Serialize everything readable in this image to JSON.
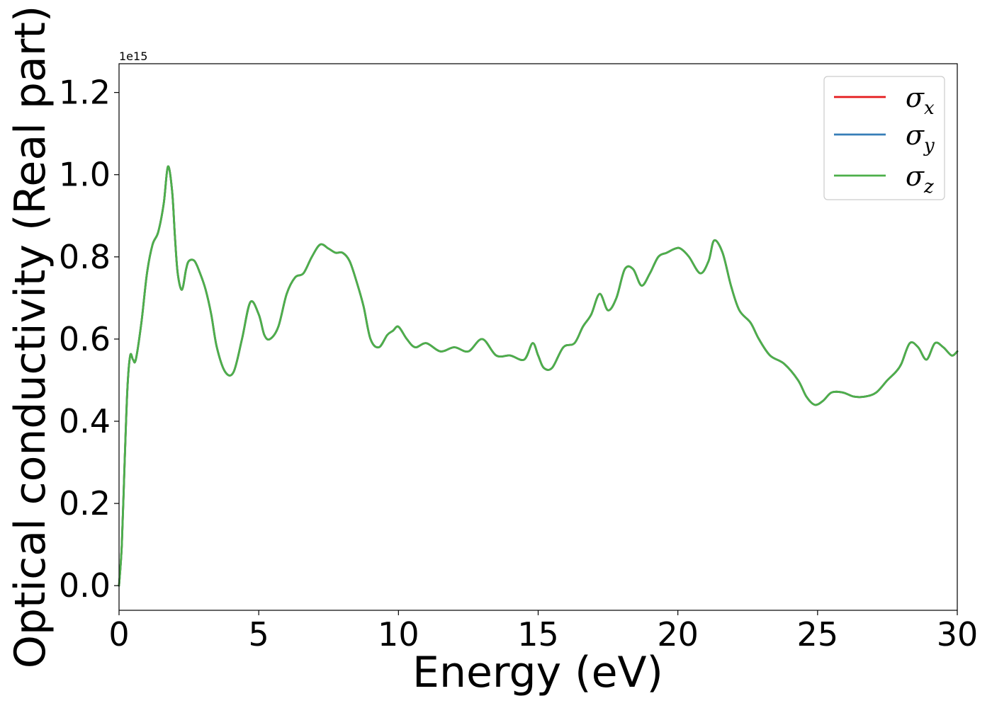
{
  "chart_data": {
    "type": "line",
    "title": "",
    "xlabel": "Energy (eV)",
    "ylabel": "Optical conductivity (Real part)",
    "y_offset_text": "1e15",
    "xlim": [
      0,
      30
    ],
    "ylim": [
      -0.06,
      1.27
    ],
    "xticks": [
      0,
      5,
      10,
      15,
      20,
      25,
      30
    ],
    "yticks": [
      0.0,
      0.2,
      0.4,
      0.6,
      0.8,
      1.0,
      1.2
    ],
    "xtick_labels": [
      "0",
      "5",
      "10",
      "15",
      "20",
      "25",
      "30"
    ],
    "ytick_labels": [
      "0.0",
      "0.2",
      "0.4",
      "0.6",
      "0.8",
      "1.0",
      "1.2"
    ],
    "grid": false,
    "legend_position": "top-right",
    "x": [
      0.0,
      0.1,
      0.2,
      0.3,
      0.4,
      0.5,
      0.6,
      0.8,
      1.0,
      1.2,
      1.4,
      1.6,
      1.75,
      1.9,
      2.0,
      2.1,
      2.25,
      2.4,
      2.5,
      2.7,
      2.9,
      3.1,
      3.3,
      3.5,
      3.8,
      4.1,
      4.4,
      4.7,
      5.0,
      5.2,
      5.4,
      5.7,
      6.0,
      6.3,
      6.6,
      6.9,
      7.2,
      7.5,
      7.75,
      8.0,
      8.25,
      8.5,
      8.75,
      9.0,
      9.3,
      9.6,
      9.8,
      10.0,
      10.3,
      10.6,
      11.0,
      11.5,
      12.0,
      12.5,
      13.0,
      13.5,
      14.0,
      14.5,
      14.8,
      15.0,
      15.2,
      15.5,
      15.9,
      16.3,
      16.6,
      16.9,
      17.2,
      17.5,
      17.8,
      18.1,
      18.4,
      18.7,
      19.0,
      19.3,
      19.6,
      19.9,
      20.1,
      20.4,
      20.8,
      21.1,
      21.3,
      21.6,
      21.9,
      22.2,
      22.6,
      22.9,
      23.3,
      23.8,
      24.3,
      24.6,
      24.9,
      25.2,
      25.5,
      25.9,
      26.3,
      26.7,
      27.1,
      27.5,
      27.8,
      28.0,
      28.3,
      28.6,
      28.9,
      29.2,
      29.5,
      29.8,
      30.0
    ],
    "series": [
      {
        "name": "σx",
        "color": "#e41a1c",
        "values": [
          0.0,
          0.1,
          0.3,
          0.48,
          0.56,
          0.55,
          0.55,
          0.64,
          0.76,
          0.83,
          0.86,
          0.93,
          1.02,
          0.96,
          0.85,
          0.76,
          0.72,
          0.77,
          0.79,
          0.79,
          0.76,
          0.72,
          0.66,
          0.58,
          0.52,
          0.52,
          0.6,
          0.69,
          0.66,
          0.61,
          0.6,
          0.63,
          0.71,
          0.75,
          0.76,
          0.8,
          0.83,
          0.82,
          0.81,
          0.81,
          0.79,
          0.74,
          0.68,
          0.6,
          0.58,
          0.61,
          0.62,
          0.63,
          0.6,
          0.58,
          0.59,
          0.57,
          0.58,
          0.57,
          0.6,
          0.56,
          0.56,
          0.55,
          0.59,
          0.56,
          0.53,
          0.53,
          0.58,
          0.59,
          0.63,
          0.66,
          0.71,
          0.67,
          0.7,
          0.77,
          0.77,
          0.73,
          0.76,
          0.8,
          0.81,
          0.82,
          0.82,
          0.8,
          0.76,
          0.79,
          0.84,
          0.81,
          0.73,
          0.67,
          0.64,
          0.6,
          0.56,
          0.54,
          0.5,
          0.46,
          0.44,
          0.45,
          0.47,
          0.47,
          0.46,
          0.46,
          0.47,
          0.5,
          0.52,
          0.54,
          0.59,
          0.58,
          0.55,
          0.59,
          0.58,
          0.56,
          0.57
        ]
      },
      {
        "name": "σy",
        "color": "#377eb8",
        "values": [
          0.0,
          0.1,
          0.3,
          0.48,
          0.56,
          0.55,
          0.55,
          0.64,
          0.76,
          0.83,
          0.86,
          0.93,
          1.02,
          0.96,
          0.85,
          0.76,
          0.72,
          0.77,
          0.79,
          0.79,
          0.76,
          0.72,
          0.66,
          0.58,
          0.52,
          0.52,
          0.6,
          0.69,
          0.66,
          0.61,
          0.6,
          0.63,
          0.71,
          0.75,
          0.76,
          0.8,
          0.83,
          0.82,
          0.81,
          0.81,
          0.79,
          0.74,
          0.68,
          0.6,
          0.58,
          0.61,
          0.62,
          0.63,
          0.6,
          0.58,
          0.59,
          0.57,
          0.58,
          0.57,
          0.6,
          0.56,
          0.56,
          0.55,
          0.59,
          0.56,
          0.53,
          0.53,
          0.58,
          0.59,
          0.63,
          0.66,
          0.71,
          0.67,
          0.7,
          0.77,
          0.77,
          0.73,
          0.76,
          0.8,
          0.81,
          0.82,
          0.82,
          0.8,
          0.76,
          0.79,
          0.84,
          0.81,
          0.73,
          0.67,
          0.64,
          0.6,
          0.56,
          0.54,
          0.5,
          0.46,
          0.44,
          0.45,
          0.47,
          0.47,
          0.46,
          0.46,
          0.47,
          0.5,
          0.52,
          0.54,
          0.59,
          0.58,
          0.55,
          0.59,
          0.58,
          0.56,
          0.57
        ]
      },
      {
        "name": "σz",
        "color": "#4daf4a",
        "values": [
          0.0,
          0.1,
          0.3,
          0.48,
          0.56,
          0.55,
          0.55,
          0.64,
          0.76,
          0.83,
          0.86,
          0.93,
          1.02,
          0.96,
          0.85,
          0.76,
          0.72,
          0.77,
          0.79,
          0.79,
          0.76,
          0.72,
          0.66,
          0.58,
          0.52,
          0.52,
          0.6,
          0.69,
          0.66,
          0.61,
          0.6,
          0.63,
          0.71,
          0.75,
          0.76,
          0.8,
          0.83,
          0.82,
          0.81,
          0.81,
          0.79,
          0.74,
          0.68,
          0.6,
          0.58,
          0.61,
          0.62,
          0.63,
          0.6,
          0.58,
          0.59,
          0.57,
          0.58,
          0.57,
          0.6,
          0.56,
          0.56,
          0.55,
          0.59,
          0.56,
          0.53,
          0.53,
          0.58,
          0.59,
          0.63,
          0.66,
          0.71,
          0.67,
          0.7,
          0.77,
          0.77,
          0.73,
          0.76,
          0.8,
          0.81,
          0.82,
          0.82,
          0.8,
          0.76,
          0.79,
          0.84,
          0.81,
          0.73,
          0.67,
          0.64,
          0.6,
          0.56,
          0.54,
          0.5,
          0.46,
          0.44,
          0.45,
          0.47,
          0.47,
          0.46,
          0.46,
          0.47,
          0.5,
          0.52,
          0.54,
          0.59,
          0.58,
          0.55,
          0.59,
          0.58,
          0.56,
          0.57
        ]
      }
    ],
    "legend": [
      {
        "base": "σ",
        "sub": "x",
        "color": "#e41a1c"
      },
      {
        "base": "σ",
        "sub": "y",
        "color": "#377eb8"
      },
      {
        "base": "σ",
        "sub": "z",
        "color": "#4daf4a"
      }
    ]
  }
}
